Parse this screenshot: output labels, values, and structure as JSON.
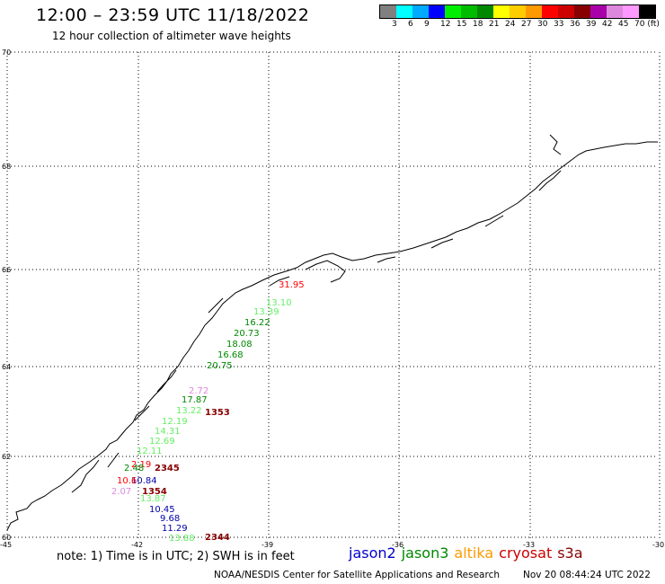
{
  "header": {
    "title": "12:00 – 23:59 UTC 11/18/2022",
    "subtitle": "12 hour collection of altimeter wave heights"
  },
  "colorbar": {
    "colors": [
      "#808080",
      "#00ffff",
      "#00aaff",
      "#0000ff",
      "#00ee00",
      "#00bb00",
      "#008800",
      "#ffff00",
      "#ffcc00",
      "#ff9900",
      "#ff0000",
      "#cc0000",
      "#880000",
      "#aa00aa",
      "#dd88dd",
      "#ff99ff",
      "#000000"
    ],
    "labels": [
      "3",
      "6",
      "9",
      "12",
      "15",
      "18",
      "21",
      "24",
      "27",
      "30",
      "33",
      "36",
      "39",
      "42",
      "45",
      "70 (ft)"
    ]
  },
  "axes": {
    "latitudes": [
      "70",
      "68",
      "66",
      "64",
      "62",
      "60"
    ],
    "longitudes": [
      "-45",
      "-42",
      "-39",
      "-36",
      "-33",
      "-30"
    ]
  },
  "wave_heights": [
    {
      "text": "31.95",
      "color": "#ff0000"
    },
    {
      "text": "13.10",
      "color": "#66ee66"
    },
    {
      "text": "13.39",
      "color": "#66ee66"
    },
    {
      "text": "16.22",
      "color": "#008800"
    },
    {
      "text": "20.73",
      "color": "#008800"
    },
    {
      "text": "18.08",
      "color": "#008800"
    },
    {
      "text": "16.68",
      "color": "#008800"
    },
    {
      "text": "20.75",
      "color": "#008800"
    },
    {
      "text": "2.72",
      "color": "#dd88dd"
    },
    {
      "text": "17.87",
      "color": "#008800"
    },
    {
      "text": "13.22",
      "color": "#66ee66"
    },
    {
      "text": "1353",
      "color": "#880000"
    },
    {
      "text": "12.19",
      "color": "#66ee66"
    },
    {
      "text": "14.31",
      "color": "#66ee66"
    },
    {
      "text": "12.69",
      "color": "#66ee66"
    },
    {
      "text": "12.11",
      "color": "#66ee66"
    },
    {
      "text": "2.19",
      "color": "#ff0000"
    },
    {
      "text": "2.48",
      "color": "#008800"
    },
    {
      "text": "2345",
      "color": "#880000"
    },
    {
      "text": "10.84",
      "color": "#0000aa"
    },
    {
      "text": "10.6",
      "color": "#ff0000"
    },
    {
      "text": "2.07",
      "color": "#dd88dd"
    },
    {
      "text": "1354",
      "color": "#880000"
    },
    {
      "text": "13.87",
      "color": "#66ee66"
    },
    {
      "text": "10.45",
      "color": "#0000aa"
    },
    {
      "text": "9.68",
      "color": "#0000aa"
    },
    {
      "text": "11.29",
      "color": "#0000aa"
    },
    {
      "text": "13.88",
      "color": "#66ee66"
    },
    {
      "text": "2344",
      "color": "#880000"
    }
  ],
  "note": "note: 1) Time is in UTC; 2) SWH is in feet",
  "legend": [
    {
      "label": "jason2",
      "color": "#0000cc"
    },
    {
      "label": "jason3",
      "color": "#008800"
    },
    {
      "label": "altika",
      "color": "#ff9900"
    },
    {
      "label": "cryosat",
      "color": "#cc0000"
    },
    {
      "label": "s3a",
      "color": "#880000"
    }
  ],
  "footer": {
    "credit": "NOAA/NESDIS Center for Satellite Applications and Research",
    "timestamp": "Nov 20 08:44:24 UTC 2022"
  }
}
